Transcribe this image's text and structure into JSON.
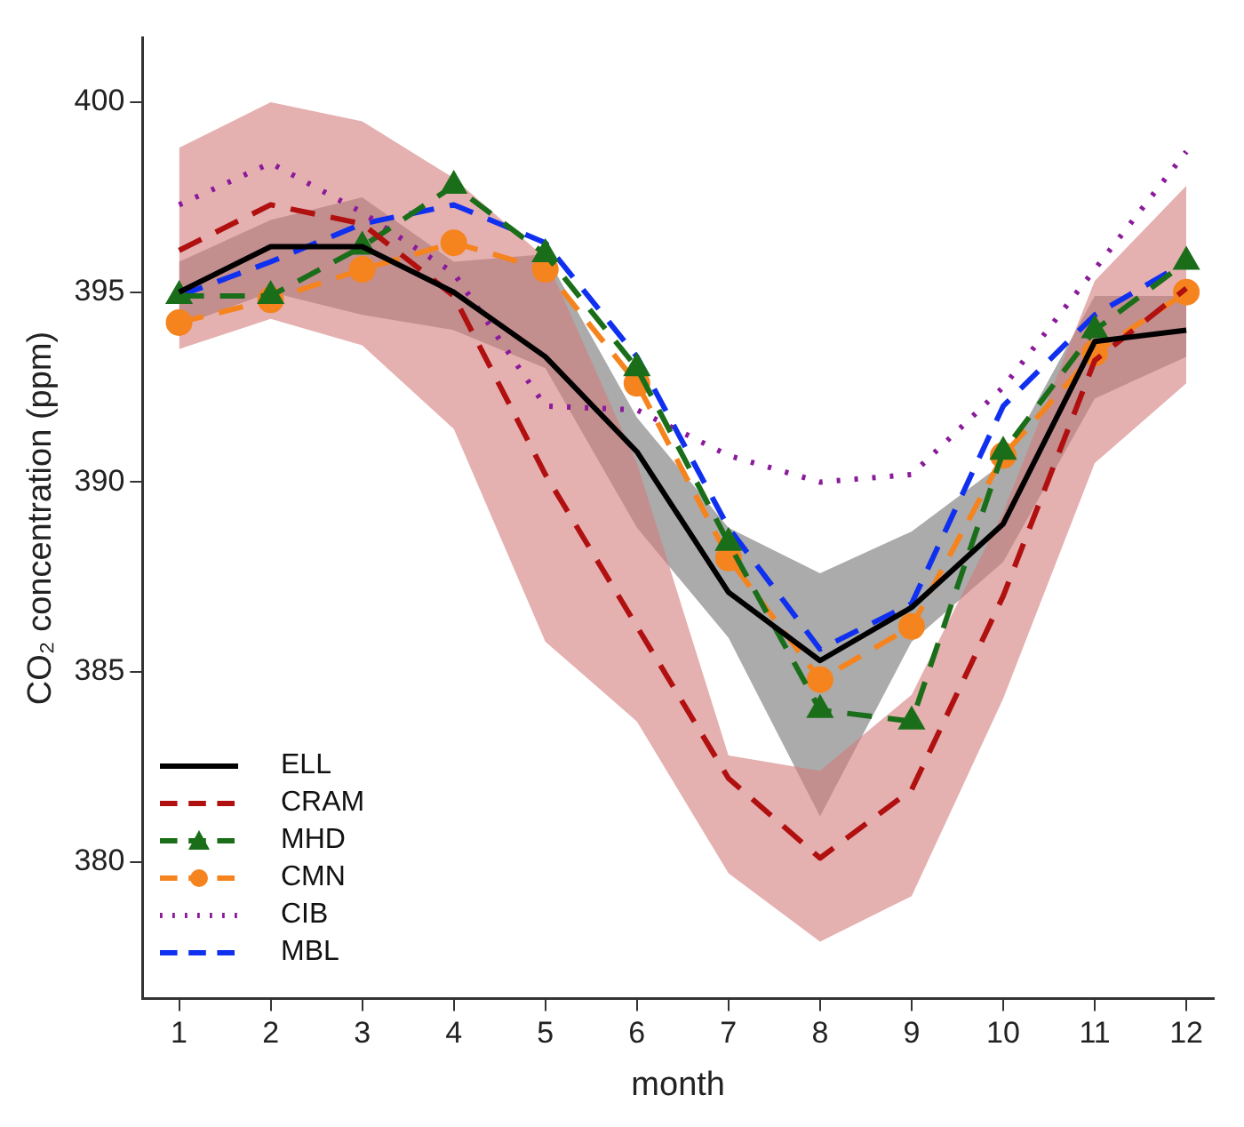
{
  "chart_data": {
    "type": "line",
    "xlabel": "month",
    "ylabel": "CO₂ concentration (ppm)",
    "x": [
      1,
      2,
      3,
      4,
      5,
      6,
      7,
      8,
      9,
      10,
      11,
      12
    ],
    "xlim": [
      0.6,
      12.3
    ],
    "xticks": [
      1,
      2,
      3,
      4,
      5,
      6,
      7,
      8,
      9,
      10,
      11,
      12
    ],
    "ylim": [
      376.4,
      401.7
    ],
    "yticks": [
      380,
      385,
      390,
      395,
      400
    ],
    "grid": false,
    "legend": "bottom left",
    "series": [
      {
        "name": "ELL",
        "color": "#000000",
        "line_style": "solid",
        "marker": "none",
        "values": [
          395.0,
          396.2,
          396.2,
          395.0,
          393.3,
          390.8,
          387.1,
          385.3,
          386.7,
          388.9,
          393.7,
          394.0
        ],
        "lower": [
          394.1,
          395.0,
          394.4,
          394.0,
          393.0,
          388.8,
          385.9,
          381.2,
          385.8,
          387.9,
          392.2,
          393.3
        ],
        "upper": [
          395.8,
          396.9,
          397.5,
          395.8,
          396.0,
          391.7,
          388.8,
          387.6,
          388.7,
          390.5,
          394.9,
          394.9
        ]
      },
      {
        "name": "CRAM",
        "color": "#b01010",
        "line_style": "dashed",
        "marker": "none",
        "values": [
          396.1,
          397.3,
          396.8,
          394.9,
          390.2,
          386.2,
          382.2,
          380.1,
          381.9,
          387.0,
          393.2,
          395.1
        ],
        "lower": [
          393.5,
          394.3,
          393.6,
          391.4,
          385.8,
          383.7,
          379.7,
          377.9,
          379.1,
          384.3,
          390.5,
          392.6
        ],
        "upper": [
          398.8,
          400.0,
          399.5,
          398.0,
          395.9,
          390.5,
          382.8,
          382.4,
          384.4,
          389.2,
          395.3,
          397.8
        ]
      },
      {
        "name": "MHD",
        "color": "#1a6e1a",
        "line_style": "dashed",
        "marker": "triangle",
        "values": [
          394.9,
          394.9,
          396.2,
          397.8,
          396.0,
          393.0,
          388.4,
          384.0,
          383.7,
          390.8,
          394.0,
          395.8
        ]
      },
      {
        "name": "CMN",
        "color": "#f5841f",
        "line_style": "dashed",
        "marker": "circle",
        "values": [
          394.2,
          394.8,
          395.6,
          396.3,
          395.6,
          392.6,
          388.0,
          384.8,
          386.2,
          390.7,
          393.4,
          395.0
        ]
      },
      {
        "name": "CIB",
        "color": "#8b1a9b",
        "line_style": "dotted",
        "marker": "none",
        "values": [
          397.3,
          398.4,
          397.1,
          395.5,
          392.0,
          391.9,
          390.7,
          390.0,
          390.2,
          392.5,
          395.6,
          398.7
        ]
      },
      {
        "name": "MBL",
        "color": "#1030f0",
        "line_style": "dashed",
        "marker": "none",
        "values": [
          394.9,
          395.8,
          396.8,
          397.3,
          396.3,
          393.3,
          388.8,
          385.6,
          386.8,
          392.0,
          394.4,
          395.8
        ]
      }
    ]
  }
}
